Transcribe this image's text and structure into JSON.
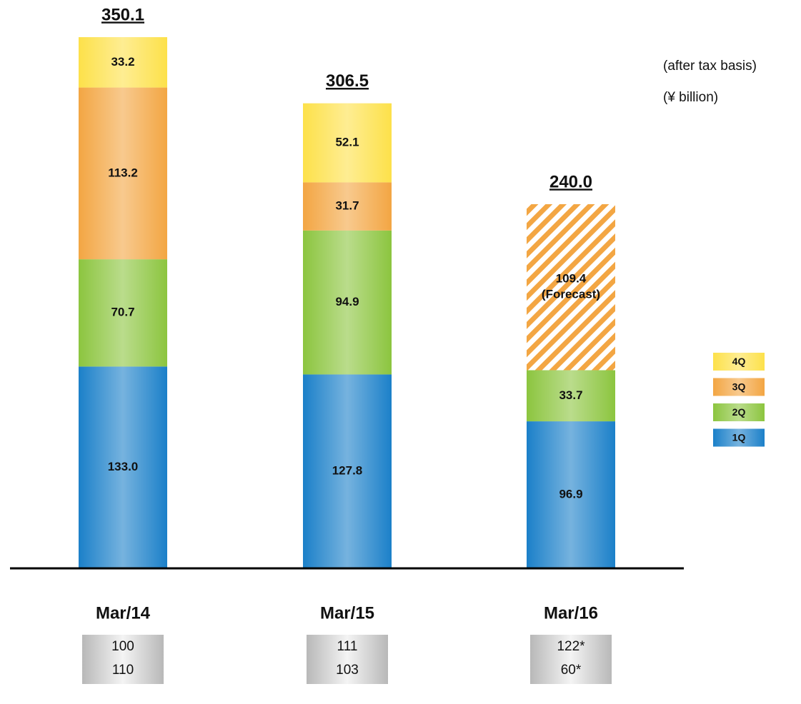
{
  "chart_data": {
    "type": "stacked_bar",
    "annotations": [
      "(after tax basis)",
      "(¥ billion)"
    ],
    "categories": [
      "Mar/14",
      "Mar/15",
      "Mar/16"
    ],
    "series": [
      {
        "name": "1Q",
        "color": "#1b80c9",
        "values": [
          133,
          127.8,
          96.9
        ],
        "value_labels": [
          "133.0",
          "127.8",
          "96.9"
        ]
      },
      {
        "name": "2Q",
        "color": "#8cc53f",
        "values": [
          70.7,
          94.9,
          33.7
        ]
      },
      {
        "name": "3Q",
        "color": "#f3a643",
        "values": [
          113.2,
          31.7,
          null
        ]
      },
      {
        "name": "4Q",
        "color": "#fde14a",
        "values": [
          33.2,
          52.1,
          null
        ]
      }
    ],
    "forecast": {
      "label": "(Forecast)",
      "color": "#f3a643",
      "values": [
        null,
        null,
        109.4
      ]
    },
    "totals": {
      "values": [
        350.1,
        306.5,
        240
      ],
      "value_labels": [
        "350.1",
        "306.5",
        "240.0"
      ]
    },
    "notes": [
      [
        "100",
        "110"
      ],
      [
        "111",
        "103"
      ],
      [
        "122*",
        "60*"
      ]
    ],
    "ylim": [
      0,
      360
    ]
  }
}
